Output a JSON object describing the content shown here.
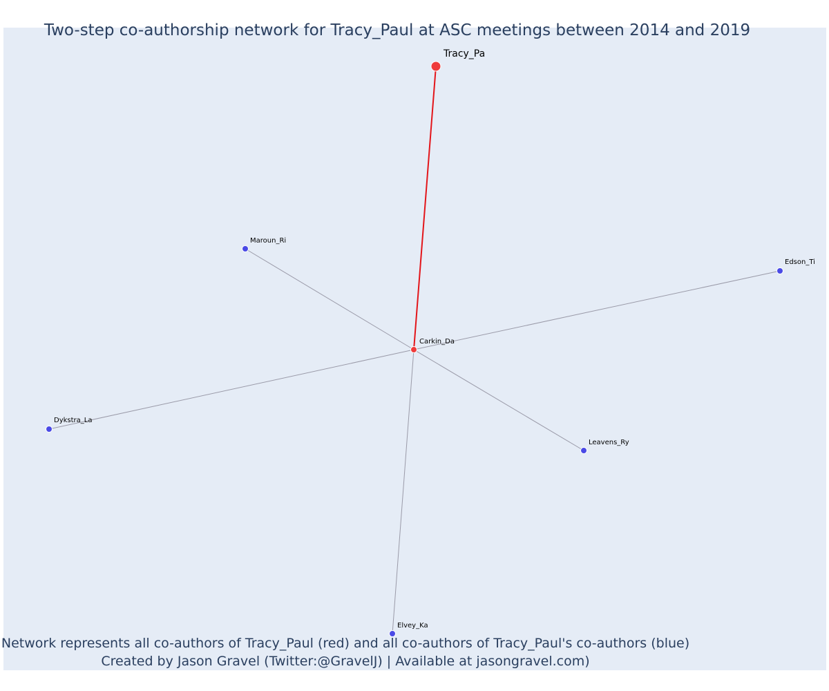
{
  "title": "Two-step co-authorship network for Tracy_Paul at ASC meetings between 2014 and 2019",
  "caption": {
    "line1": "Network represents all co-authors of Tracy_Paul (red) and all co-authors of Tracy_Paul's co-authors (blue)",
    "line2": "Created by Jason Gravel (Twitter:@GravelJ) | Available at jasongravel.com)"
  },
  "colors": {
    "background": "#e5ecf6",
    "focal": "#ef3b3b",
    "coauthor": "#ef3b3b",
    "second_step": "#4a4ae6",
    "edge_focal": "#e3151a",
    "edge_other": "#9a9aa8",
    "title_text": "#2a3f5f"
  },
  "network": {
    "nodes": [
      {
        "id": "Tracy_Pa",
        "label": "Tracy_Pa",
        "role": "focal"
      },
      {
        "id": "Carkin_Da",
        "label": "Carkin_Da",
        "role": "coauthor"
      },
      {
        "id": "Maroun_Ri",
        "label": "Maroun_Ri",
        "role": "second_step"
      },
      {
        "id": "Edson_Ti",
        "label": "Edson_Ti",
        "role": "second_step"
      },
      {
        "id": "Dykstra_La",
        "label": "Dykstra_La",
        "role": "second_step"
      },
      {
        "id": "Leavens_Ry",
        "label": "Leavens_Ry",
        "role": "second_step"
      },
      {
        "id": "Elvey_Ka",
        "label": "Elvey_Ka",
        "role": "second_step"
      }
    ],
    "edges": [
      {
        "source": "Tracy_Pa",
        "target": "Carkin_Da",
        "type": "focal"
      },
      {
        "source": "Carkin_Da",
        "target": "Maroun_Ri",
        "type": "other"
      },
      {
        "source": "Carkin_Da",
        "target": "Edson_Ti",
        "type": "other"
      },
      {
        "source": "Carkin_Da",
        "target": "Dykstra_La",
        "type": "other"
      },
      {
        "source": "Carkin_Da",
        "target": "Leavens_Ry",
        "type": "other"
      },
      {
        "source": "Carkin_Da",
        "target": "Elvey_Ka",
        "type": "other"
      }
    ]
  }
}
